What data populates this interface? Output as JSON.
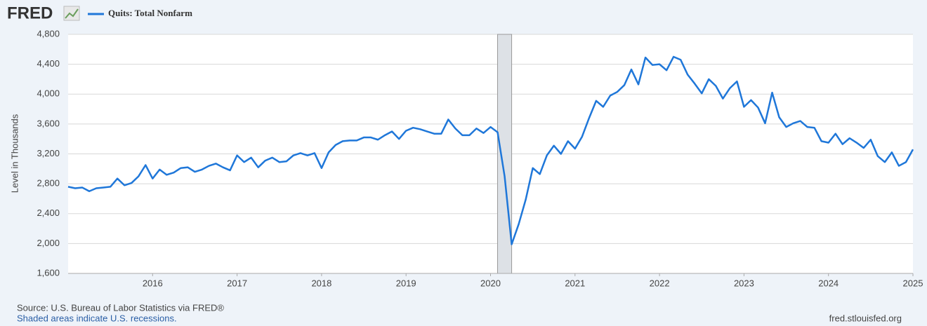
{
  "chart_data": {
    "type": "line",
    "logo": "FRED",
    "y_label": "Level in Thousands",
    "source": "Source: U.S. Bureau of Labor Statistics via FRED®",
    "recession_note": "Shaded areas indicate U.S. recessions.",
    "site": "fred.stlouisfed.org",
    "x": [
      "2015-01",
      "2015-02",
      "2015-03",
      "2015-04",
      "2015-05",
      "2015-06",
      "2015-07",
      "2015-08",
      "2015-09",
      "2015-10",
      "2015-11",
      "2015-12",
      "2016-01",
      "2016-02",
      "2016-03",
      "2016-04",
      "2016-05",
      "2016-06",
      "2016-07",
      "2016-08",
      "2016-09",
      "2016-10",
      "2016-11",
      "2016-12",
      "2017-01",
      "2017-02",
      "2017-03",
      "2017-04",
      "2017-05",
      "2017-06",
      "2017-07",
      "2017-08",
      "2017-09",
      "2017-10",
      "2017-11",
      "2017-12",
      "2018-01",
      "2018-02",
      "2018-03",
      "2018-04",
      "2018-05",
      "2018-06",
      "2018-07",
      "2018-08",
      "2018-09",
      "2018-10",
      "2018-11",
      "2018-12",
      "2019-01",
      "2019-02",
      "2019-03",
      "2019-04",
      "2019-05",
      "2019-06",
      "2019-07",
      "2019-08",
      "2019-09",
      "2019-10",
      "2019-11",
      "2019-12",
      "2020-01",
      "2020-02",
      "2020-03",
      "2020-04",
      "2020-05",
      "2020-06",
      "2020-07",
      "2020-08",
      "2020-09",
      "2020-10",
      "2020-11",
      "2020-12",
      "2021-01",
      "2021-02",
      "2021-03",
      "2021-04",
      "2021-05",
      "2021-06",
      "2021-07",
      "2021-08",
      "2021-09",
      "2021-10",
      "2021-11",
      "2021-12",
      "2022-01",
      "2022-02",
      "2022-03",
      "2022-04",
      "2022-05",
      "2022-06",
      "2022-07",
      "2022-08",
      "2022-09",
      "2022-10",
      "2022-11",
      "2022-12",
      "2023-01",
      "2023-02",
      "2023-03",
      "2023-04",
      "2023-05",
      "2023-06",
      "2023-07",
      "2023-08",
      "2023-09",
      "2023-10",
      "2023-11",
      "2023-12",
      "2024-01",
      "2024-02",
      "2024-03",
      "2024-04",
      "2024-05",
      "2024-06",
      "2024-07",
      "2024-08",
      "2024-09",
      "2024-10",
      "2024-11",
      "2024-12",
      "2025-01"
    ],
    "series": [
      {
        "name": "Quits: Total Nonfarm",
        "color": "#1f77d9",
        "values": [
          2760,
          2740,
          2750,
          2700,
          2740,
          2750,
          2760,
          2870,
          2780,
          2810,
          2900,
          3050,
          2870,
          2990,
          2920,
          2950,
          3010,
          3020,
          2960,
          2990,
          3040,
          3070,
          3020,
          2980,
          3180,
          3090,
          3150,
          3020,
          3110,
          3150,
          3090,
          3100,
          3180,
          3210,
          3180,
          3210,
          3010,
          3220,
          3320,
          3370,
          3380,
          3380,
          3420,
          3420,
          3390,
          3450,
          3500,
          3400,
          3510,
          3550,
          3530,
          3500,
          3470,
          3470,
          3660,
          3540,
          3450,
          3450,
          3540,
          3480,
          3560,
          3490,
          2900,
          1990,
          2260,
          2590,
          3010,
          2930,
          3180,
          3310,
          3200,
          3370,
          3270,
          3430,
          3680,
          3910,
          3830,
          3980,
          4030,
          4120,
          4330,
          4130,
          4490,
          4390,
          4400,
          4320,
          4500,
          4460,
          4260,
          4140,
          4010,
          4200,
          4110,
          3940,
          4080,
          4170,
          3830,
          3920,
          3820,
          3610,
          4020,
          3690,
          3560,
          3610,
          3640,
          3560,
          3550,
          3370,
          3350,
          3470,
          3330,
          3410,
          3350,
          3280,
          3390,
          3170,
          3090,
          3220,
          3040,
          3090,
          3260
        ]
      }
    ],
    "recessions": [
      {
        "start": "2020-02",
        "end": "2020-04"
      }
    ],
    "recession_color": "#dde1e6",
    "xlim": [
      2015,
      2025
    ],
    "xticks": [
      2016,
      2017,
      2018,
      2019,
      2020,
      2021,
      2022,
      2023,
      2024,
      2025
    ],
    "ylim": [
      1600,
      4800
    ],
    "yticks": [
      {
        "value": 1600,
        "label": "1,600"
      },
      {
        "value": 2000,
        "label": "2,000"
      },
      {
        "value": 2400,
        "label": "2,400"
      },
      {
        "value": 2800,
        "label": "2,800"
      },
      {
        "value": 3200,
        "label": "3,200"
      },
      {
        "value": 3600,
        "label": "3,600"
      },
      {
        "value": 4000,
        "label": "4,000"
      },
      {
        "value": 4400,
        "label": "4,400"
      },
      {
        "value": 4800,
        "label": "4,800"
      }
    ],
    "grid": true
  }
}
